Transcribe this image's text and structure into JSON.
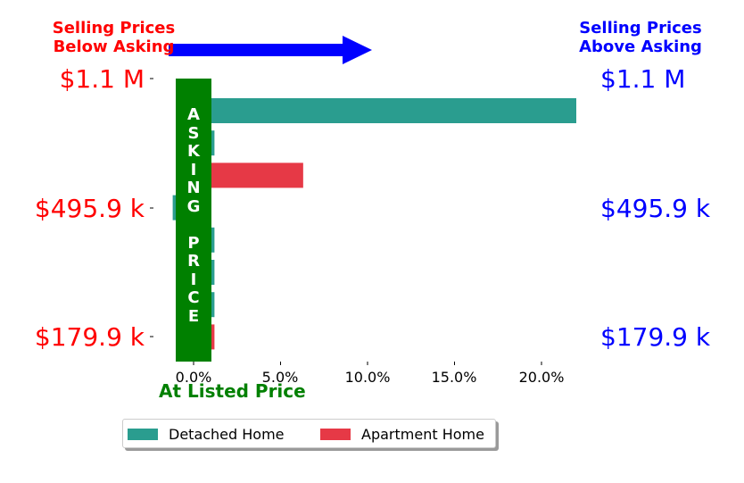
{
  "header": {
    "left": "Selling Prices\nBelow Asking",
    "right": "Selling Prices\nAbove Asking"
  },
  "price_labels": {
    "left": [
      "$1.1 M",
      "$495.9 k",
      "$179.9 k"
    ],
    "right": [
      "$1.1 M",
      "$495.9 k",
      "$179.9 k"
    ]
  },
  "asking_price_letters": [
    "A",
    "S",
    "K",
    "I",
    "N",
    "G",
    " ",
    "P",
    "R",
    "I",
    "C",
    "E"
  ],
  "at_listed_price": "At Listed Price",
  "colors": {
    "detached": "#2a9d8f",
    "apartment": "#e63946",
    "asking_band": "#008000",
    "below": "#ff0000",
    "above": "#0000ff"
  },
  "legend": [
    "Detached Home",
    "Apartment Home"
  ],
  "chart_data": {
    "type": "bar",
    "orientation": "horizontal",
    "x_unit": "percent above asking price",
    "xlim": [
      -1.3,
      22.0
    ],
    "xticks": [
      "0.0%",
      "5.0%",
      "10.0%",
      "15.0%",
      "20.0%"
    ],
    "bars": [
      {
        "series": "Detached Home",
        "value": 22.0
      },
      {
        "series": "Detached Home",
        "value": 1.2
      },
      {
        "series": "Apartment Home",
        "value": 6.3
      },
      {
        "series": "Detached Home",
        "value": -1.2
      },
      {
        "series": "Detached Home",
        "value": 1.2
      },
      {
        "series": "Detached Home",
        "value": 1.2
      },
      {
        "series": "Detached Home",
        "value": 1.2
      },
      {
        "series": "Apartment Home",
        "value": 1.2
      }
    ],
    "series": [
      "Detached Home",
      "Apartment Home"
    ],
    "price_axis": [
      "$1.1 M",
      "$495.9 k",
      "$179.9 k"
    ]
  }
}
